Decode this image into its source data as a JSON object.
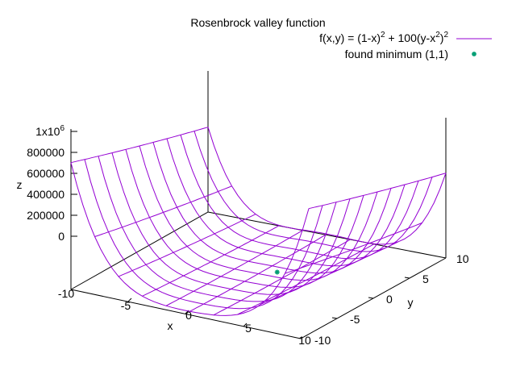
{
  "chart_data": {
    "type": "surface3d",
    "title": "Rosenbrock valley function",
    "xlabel": "x",
    "ylabel": "y",
    "zlabel": "z",
    "xlim": [
      -10,
      10
    ],
    "ylim": [
      -10,
      10
    ],
    "zlim": [
      0,
      1000000
    ],
    "x_ticks": [
      "-10",
      "-5",
      "0",
      "5",
      "10"
    ],
    "y_ticks": [
      "-10",
      "-5",
      "0",
      "5",
      "10"
    ],
    "z_ticks": [
      "0",
      "200000",
      "400000",
      "600000",
      "800000"
    ],
    "z_top_tick": {
      "base": "1x10",
      "exponent": "6"
    },
    "mesh_x_values": [
      -10,
      -8,
      -6,
      -4,
      -2,
      0,
      2,
      4,
      6,
      8,
      10
    ],
    "mesh_y_values": [
      -10,
      -8,
      -6,
      -4,
      -2,
      0,
      2,
      4,
      6,
      8,
      10
    ],
    "legend_position": "top-right",
    "series": [
      {
        "name_parts": [
          "f(x,y) = (1-x)",
          "2",
          " + 100(y-x",
          "2",
          ")",
          "2"
        ],
        "kind": "surface",
        "function": "(1-x)^2 + 100(y-x^2)^2",
        "color": "#9400d3"
      },
      {
        "name": "found minimum (1,1)",
        "kind": "point",
        "x": 1,
        "y": 1,
        "z": 0,
        "color": "#009e73"
      }
    ]
  }
}
